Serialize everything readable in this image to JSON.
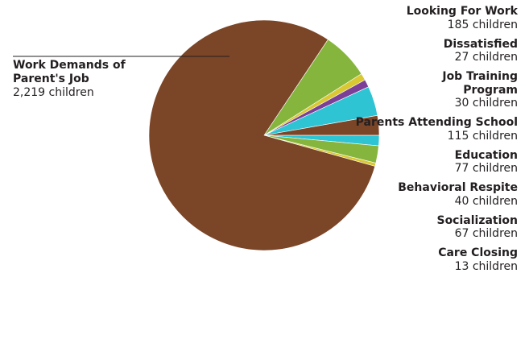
{
  "chart_data": {
    "type": "pie",
    "unit": "children",
    "slices": [
      {
        "name": "Work Demands of Parent's Job",
        "value": 2219,
        "value_label": "2,219 children",
        "color": "#7b4527"
      },
      {
        "name": "Looking For Work",
        "value": 185,
        "value_label": "185 children",
        "color": "#86b53e"
      },
      {
        "name": "Dissatisfied",
        "value": 27,
        "value_label": "27 children",
        "color": "#d9c832"
      },
      {
        "name": "Job Training Program",
        "value": 30,
        "value_label": "30 children",
        "color": "#7b3f98"
      },
      {
        "name": "Parents Attending School",
        "value": 115,
        "value_label": "115 children",
        "color": "#2ec4d4"
      },
      {
        "name": "Education",
        "value": 77,
        "value_label": "77 children",
        "color": "#7b4527"
      },
      {
        "name": "Behavioral Respite",
        "value": 40,
        "value_label": "40 children",
        "color": "#2ec4d4"
      },
      {
        "name": "Socialization",
        "value": 67,
        "value_label": "67 children",
        "color": "#86b53e"
      },
      {
        "name": "Care Closing",
        "value": 13,
        "value_label": "13 children",
        "color": "#d9c832"
      }
    ]
  },
  "callout": {
    "name": "Work Demands of Parent's Job",
    "value_label": "2,219 children"
  }
}
